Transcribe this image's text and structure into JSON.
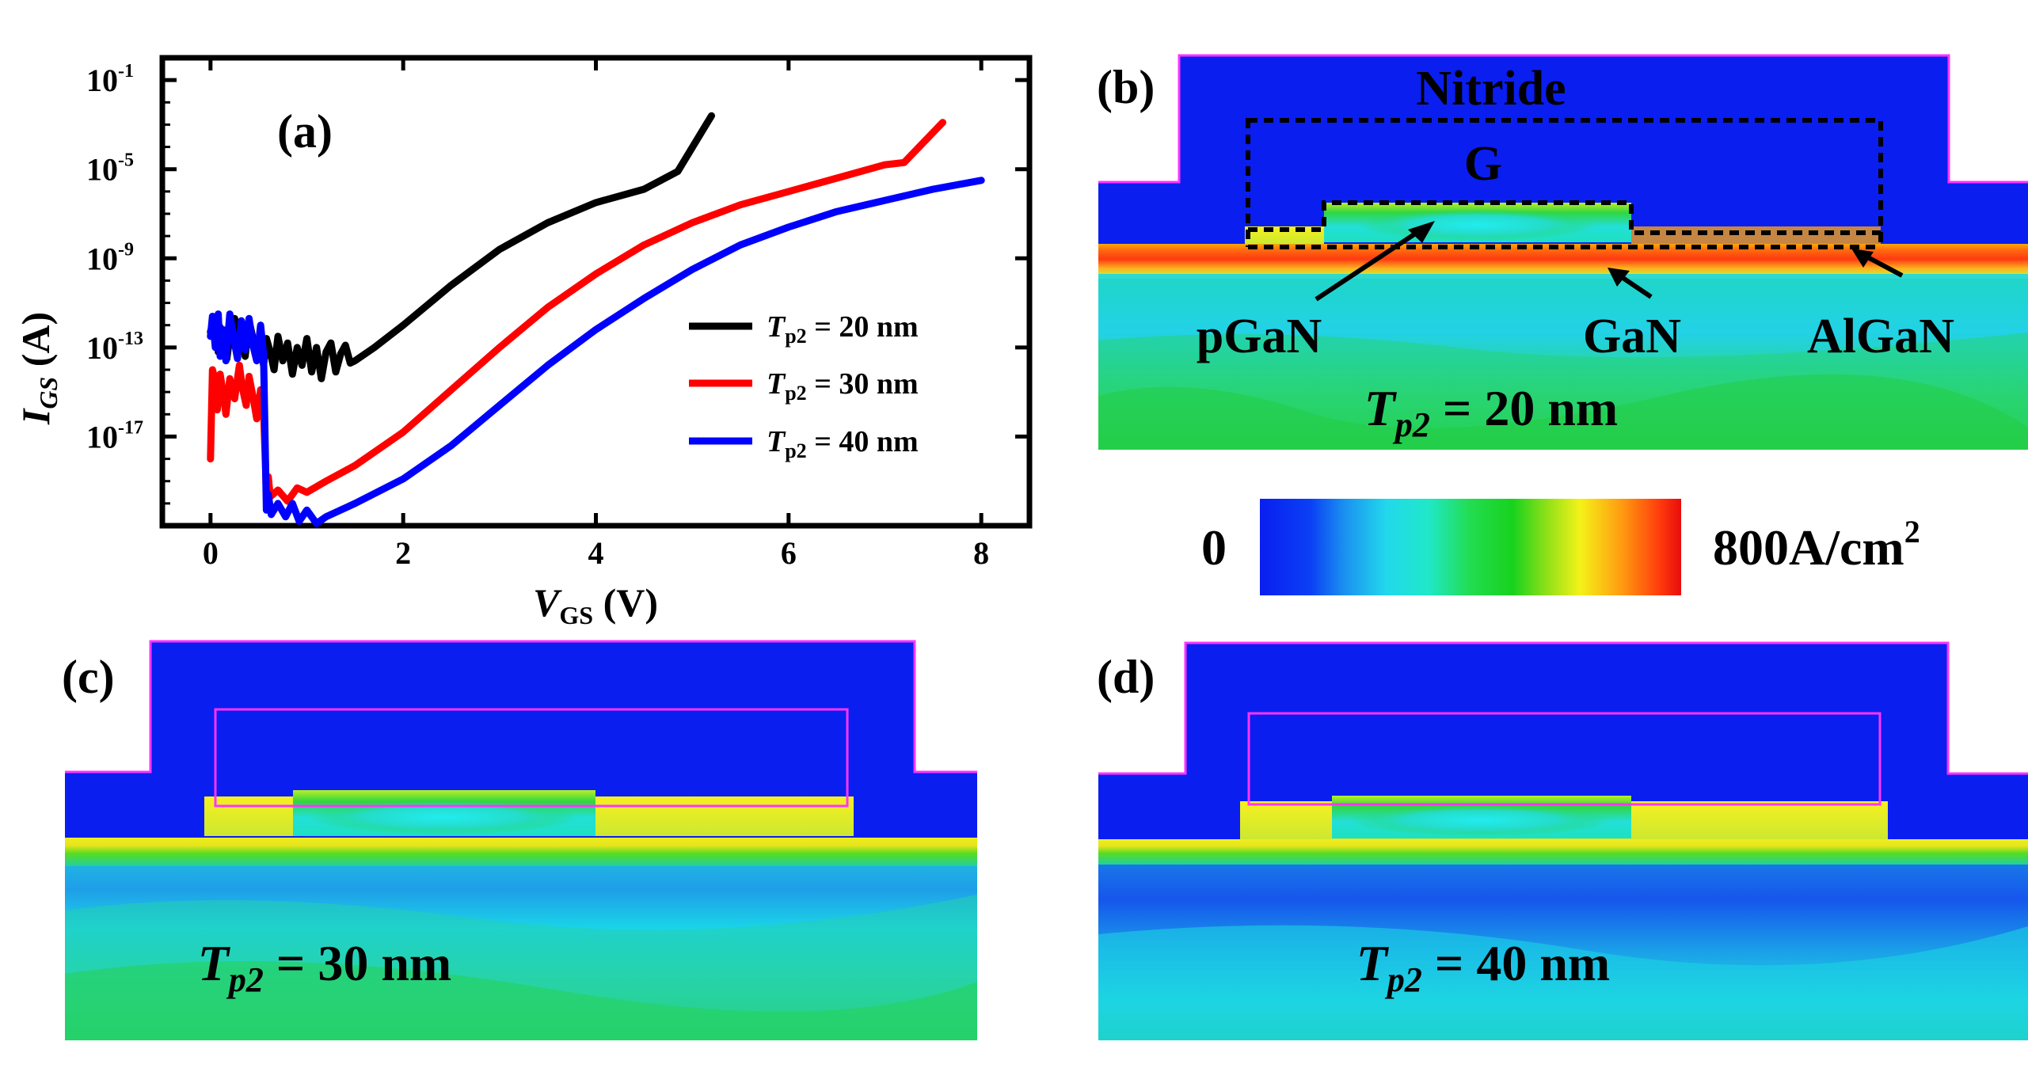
{
  "colors": {
    "nitride": "#0a1ef0",
    "outline": "#ff33ff",
    "black_series": "#000000",
    "red_series": "#ff0000",
    "blue_series": "#0000ff"
  },
  "chart_data": [
    {
      "type": "line",
      "panel": "(a)",
      "xlabel": {
        "main": "V",
        "sub": "GS",
        "unit": " (V)"
      },
      "ylabel": {
        "main": "I",
        "sub": "GS",
        "unit": " (A)"
      },
      "xlim": [
        -0.5,
        8.5
      ],
      "ylim_log10": [
        -21,
        0
      ],
      "yscale": "log",
      "x_ticks": [
        "0",
        "2",
        "4",
        "6",
        "8"
      ],
      "x_tick_values": [
        0,
        2,
        4,
        6,
        8
      ],
      "y_ticks": [
        {
          "base": "10",
          "exp": "-1",
          "value": -1
        },
        {
          "base": "10",
          "exp": "-5",
          "value": -5
        },
        {
          "base": "10",
          "exp": "-9",
          "value": -9
        },
        {
          "base": "10",
          "exp": "-13",
          "value": -13
        },
        {
          "base": "10",
          "exp": "-17",
          "value": -17
        }
      ],
      "legend_position": "center-right",
      "series": [
        {
          "name_main": "T",
          "name_sub": "p2",
          "name_rest": " = 20 nm",
          "color": "#000000",
          "x": [
            0.0,
            0.02,
            0.05,
            0.08,
            0.1,
            0.13,
            0.17,
            0.2,
            0.25,
            0.3,
            0.33,
            0.36,
            0.4,
            0.44,
            0.48,
            0.52,
            0.55,
            0.58,
            0.62,
            0.66,
            0.7,
            0.75,
            0.8,
            0.85,
            0.9,
            0.95,
            1.0,
            1.05,
            1.1,
            1.15,
            1.2,
            1.25,
            1.3,
            1.35,
            1.4,
            1.45,
            1.5,
            1.7,
            2.0,
            2.5,
            3.0,
            3.5,
            4.0,
            4.5,
            4.85,
            5.2
          ],
          "log10_y": [
            -12.3,
            -12.0,
            -11.8,
            -13.2,
            -12.1,
            -12.8,
            -13.5,
            -12.5,
            -11.7,
            -13.0,
            -12.0,
            -13.4,
            -11.8,
            -12.6,
            -13.5,
            -12.2,
            -13.8,
            -12.6,
            -13.2,
            -14.0,
            -12.5,
            -13.6,
            -12.8,
            -14.2,
            -13.0,
            -13.8,
            -12.6,
            -14.1,
            -13.0,
            -14.4,
            -13.2,
            -12.8,
            -14.1,
            -13.3,
            -12.9,
            -13.7,
            -13.6,
            -13.0,
            -12.0,
            -10.2,
            -8.6,
            -7.4,
            -6.5,
            -5.9,
            -5.1,
            -2.6
          ]
        },
        {
          "name_main": "T",
          "name_sub": "p2",
          "name_rest": " = 30 nm",
          "color": "#ff0000",
          "x": [
            0.0,
            0.02,
            0.05,
            0.07,
            0.1,
            0.13,
            0.16,
            0.2,
            0.25,
            0.3,
            0.33,
            0.37,
            0.4,
            0.44,
            0.48,
            0.52,
            0.55,
            0.58,
            0.6,
            0.62,
            0.7,
            0.8,
            0.9,
            1.0,
            1.2,
            1.5,
            2.0,
            2.5,
            3.0,
            3.5,
            4.0,
            4.5,
            5.0,
            5.5,
            6.0,
            6.5,
            7.0,
            7.2,
            7.6
          ],
          "log10_y": [
            -18.0,
            -14.0,
            -14.5,
            -15.8,
            -14.2,
            -15.0,
            -16.0,
            -14.4,
            -15.3,
            -13.8,
            -14.8,
            -15.6,
            -14.3,
            -15.2,
            -16.2,
            -14.9,
            -15.8,
            -19.5,
            -18.8,
            -19.7,
            -19.4,
            -19.9,
            -19.3,
            -19.5,
            -19.0,
            -18.3,
            -16.8,
            -14.9,
            -13.0,
            -11.2,
            -9.7,
            -8.4,
            -7.4,
            -6.6,
            -6.0,
            -5.4,
            -4.8,
            -4.7,
            -2.9
          ]
        },
        {
          "name_main": "T",
          "name_sub": "p2",
          "name_rest": " = 40 nm",
          "color": "#0000ff",
          "x": [
            0.0,
            0.02,
            0.05,
            0.08,
            0.1,
            0.13,
            0.16,
            0.2,
            0.25,
            0.28,
            0.32,
            0.36,
            0.4,
            0.44,
            0.48,
            0.52,
            0.55,
            0.58,
            0.6,
            0.63,
            0.7,
            0.78,
            0.85,
            0.92,
            1.0,
            1.1,
            1.2,
            1.5,
            2.0,
            2.5,
            3.0,
            3.5,
            4.0,
            4.5,
            5.0,
            5.5,
            6.0,
            6.5,
            7.0,
            7.5,
            8.0
          ],
          "log10_y": [
            -12.5,
            -11.6,
            -13.0,
            -11.5,
            -13.4,
            -12.2,
            -13.6,
            -11.5,
            -12.8,
            -13.5,
            -11.8,
            -13.1,
            -11.7,
            -12.9,
            -13.6,
            -12.0,
            -13.3,
            -20.3,
            -19.6,
            -20.5,
            -20.0,
            -20.6,
            -20.0,
            -20.8,
            -20.3,
            -20.9,
            -20.6,
            -20.0,
            -18.9,
            -17.4,
            -15.6,
            -13.8,
            -12.2,
            -10.8,
            -9.5,
            -8.4,
            -7.6,
            -6.9,
            -6.4,
            -5.9,
            -5.5
          ]
        }
      ]
    },
    {
      "type": "heatmap",
      "panel": "(b)",
      "title": {
        "main": "T",
        "sub": "p2",
        "rest": " = 20 nm"
      },
      "labels": {
        "nitride": "Nitride",
        "gate": "G",
        "pgan": "pGaN",
        "gan": "GaN",
        "algan": "AlGaN"
      },
      "colorbar": {
        "min_label": "0",
        "max_label": "800A/cm",
        "max_exp": "2",
        "min_value": 0,
        "max_value": 800,
        "unit": "A/cm^2"
      }
    },
    {
      "type": "heatmap",
      "panel": "(c)",
      "title": {
        "main": "T",
        "sub": "p2",
        "rest": " = 30 nm"
      }
    },
    {
      "type": "heatmap",
      "panel": "(d)",
      "title": {
        "main": "T",
        "sub": "p2",
        "rest": " = 40 nm"
      }
    }
  ]
}
